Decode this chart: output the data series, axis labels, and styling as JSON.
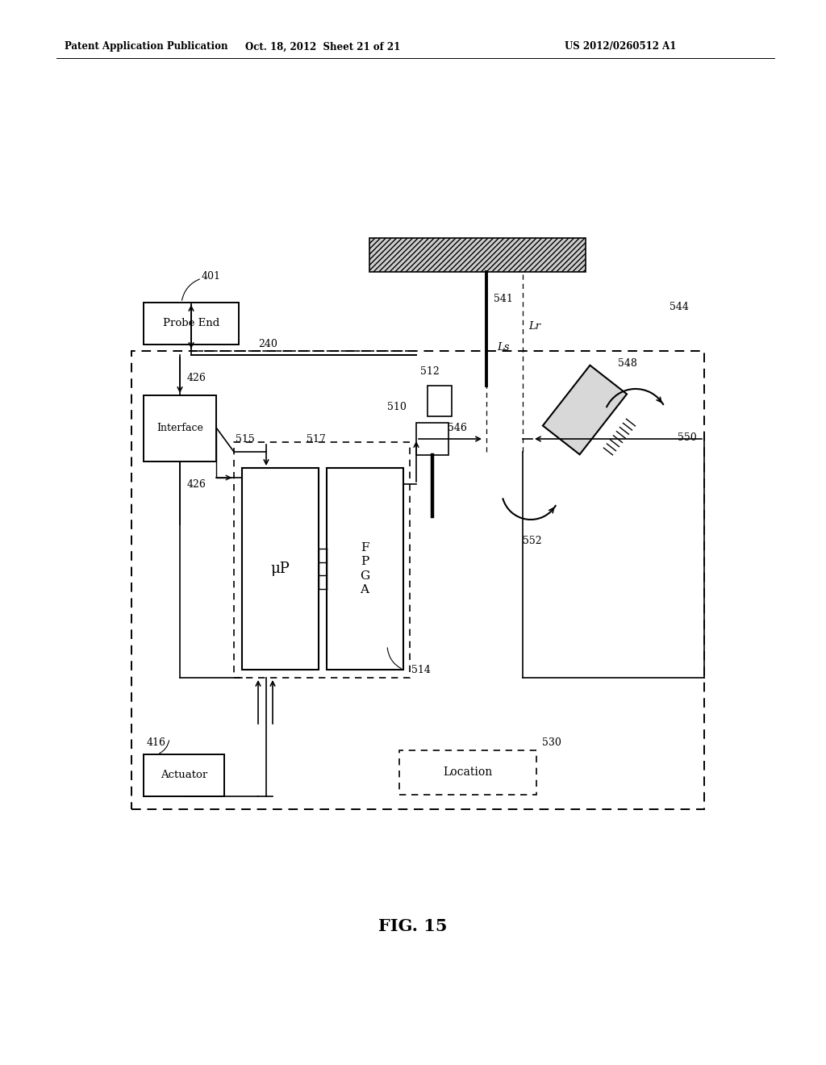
{
  "bg_color": "#ffffff",
  "title_text": "FIG. 15",
  "header_left": "Patent Application Publication",
  "header_mid": "Oct. 18, 2012  Sheet 21 of 21",
  "header_right": "US 2012/0260512 A1",
  "fig_width": 10.24,
  "fig_height": 13.2,
  "dpi": 100
}
